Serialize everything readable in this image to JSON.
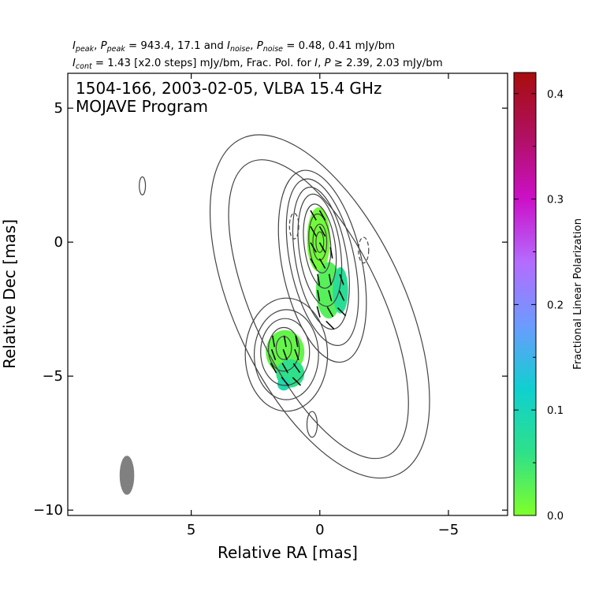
{
  "header": {
    "line1": "I_peak, P_peak = 943.4, 17.1 and I_noise, P_noise = 0.48, 0.41 mJy/bm",
    "line2": "I_cont = 1.43 [x2.0 steps] mJy/bm, Frac. Pol. for I, P ≥ 2.39, 2.03 mJy/bm"
  },
  "chart_data": {
    "type": "contour",
    "title": "1504-166, 2003-02-05, VLBA 15.4 GHz",
    "subtitle": "MOJAVE Program",
    "xlabel": "Relative RA [mas]",
    "ylabel": "Relative Dec [mas]",
    "xlim": [
      9.8,
      -7.3
    ],
    "ylim": [
      -10.2,
      6.3
    ],
    "x_ticks": [
      {
        "value": 5,
        "label": "5"
      },
      {
        "value": 0,
        "label": "0"
      },
      {
        "value": -5,
        "label": "−5"
      }
    ],
    "y_ticks": [
      {
        "value": 5,
        "label": "5"
      },
      {
        "value": 0,
        "label": "0"
      },
      {
        "value": -5,
        "label": "−5"
      },
      {
        "value": -10,
        "label": "−10"
      }
    ],
    "colorbar": {
      "label": "Fractional Linear Polarization",
      "range": [
        0.0,
        0.42
      ],
      "ticks": [
        {
          "value": 0.0,
          "label": "0.0"
        },
        {
          "value": 0.1,
          "label": "0.1"
        },
        {
          "value": 0.2,
          "label": "0.2"
        },
        {
          "value": 0.3,
          "label": "0.3"
        },
        {
          "value": 0.4,
          "label": "0.4"
        }
      ],
      "colors": [
        "#7fff2a",
        "#2ee08a",
        "#0fd0d0",
        "#6b9bff",
        "#b46cff",
        "#cc10c8",
        "#b01060",
        "#a80d0d"
      ]
    },
    "beam": {
      "x": 7.5,
      "y": -8.7,
      "major_mas": 1.5,
      "minor_mas": 0.55,
      "pa_deg": 0
    },
    "core_contours": [
      {
        "level": 1,
        "rx": 3.3,
        "ry": 7.2,
        "dx": 0.0,
        "dy": -2.4,
        "rot": -25
      },
      {
        "level": 2,
        "rx": 2.5,
        "ry": 6.3,
        "dx": 0.05,
        "dy": -2.5,
        "rot": -25
      },
      {
        "level": 3,
        "rx": 1.55,
        "ry": 3.8,
        "dx": -0.1,
        "dy": -0.9,
        "rot": -12
      },
      {
        "level": 4,
        "rx": 1.25,
        "ry": 3.3,
        "dx": -0.1,
        "dy": -0.75,
        "rot": -12
      },
      {
        "level": 5,
        "rx": 1.0,
        "ry": 2.8,
        "dx": -0.05,
        "dy": -0.6,
        "rot": -10
      },
      {
        "level": 6,
        "rx": 0.8,
        "ry": 2.2,
        "dx": 0.0,
        "dy": -0.3,
        "rot": -8
      },
      {
        "level": 7,
        "rx": 0.6,
        "ry": 1.65,
        "dx": 0.0,
        "dy": -0.15,
        "rot": -8
      },
      {
        "level": 8,
        "rx": 0.42,
        "ry": 1.15,
        "dx": 0.0,
        "dy": -0.05,
        "rot": -5
      },
      {
        "level": 9,
        "rx": 0.27,
        "ry": 0.7,
        "dx": 0.0,
        "dy": 0.0,
        "rot": 0
      },
      {
        "level": 10,
        "rx": 0.15,
        "ry": 0.4,
        "dx": 0.0,
        "dy": 0.0,
        "rot": 0
      }
    ],
    "knot_contours": [
      {
        "level": 1,
        "cx": 1.3,
        "cy": -4.2,
        "rx": 1.6,
        "ry": 2.2
      },
      {
        "level": 2,
        "cx": 1.3,
        "cy": -4.2,
        "rx": 1.25,
        "ry": 1.75
      },
      {
        "level": 3,
        "cx": 1.35,
        "cy": -4.1,
        "rx": 0.95,
        "ry": 1.3
      },
      {
        "level": 4,
        "cx": 1.4,
        "cy": -4.0,
        "rx": 0.6,
        "ry": 0.85
      },
      {
        "level": 5,
        "cx": 1.4,
        "cy": -3.95,
        "rx": 0.3,
        "ry": 0.45
      }
    ],
    "isolated_contours": [
      {
        "x": 6.9,
        "y": 2.1,
        "rx": 0.12,
        "ry": 0.35,
        "dashed": false
      },
      {
        "x": 1.0,
        "y": 0.6,
        "rx": 0.18,
        "ry": 0.5,
        "dashed": true
      },
      {
        "x": -1.7,
        "y": -0.3,
        "rx": 0.2,
        "ry": 0.5,
        "dashed": true
      },
      {
        "x": 0.3,
        "y": -6.8,
        "rx": 0.2,
        "ry": 0.5,
        "dashed": false
      }
    ],
    "polarization_regions": [
      {
        "x": 0.05,
        "y": 0.1,
        "rx": 0.45,
        "ry": 1.25,
        "frac": 0.01
      },
      {
        "x": -0.35,
        "y": -1.8,
        "rx": 0.5,
        "ry": 1.1,
        "frac": 0.03
      },
      {
        "x": -0.8,
        "y": -1.8,
        "rx": 0.3,
        "ry": 0.9,
        "frac": 0.07
      },
      {
        "x": 1.35,
        "y": -4.1,
        "rx": 0.75,
        "ry": 0.85,
        "frac": 0.02
      },
      {
        "x": 1.15,
        "y": -4.9,
        "rx": 0.55,
        "ry": 0.55,
        "frac": 0.06
      },
      {
        "x": 1.4,
        "y": -5.3,
        "rx": 0.25,
        "ry": 0.25,
        "frac": 0.09
      }
    ],
    "evpa_vectors": [
      {
        "x": 0.25,
        "y": 1.0,
        "pa": 60
      },
      {
        "x": -0.1,
        "y": 1.0,
        "pa": 60
      },
      {
        "x": 0.25,
        "y": 0.4,
        "pa": 60
      },
      {
        "x": -0.1,
        "y": 0.4,
        "pa": 60
      },
      {
        "x": 0.25,
        "y": -0.2,
        "pa": 60
      },
      {
        "x": -0.1,
        "y": -0.2,
        "pa": 60
      },
      {
        "x": 0.25,
        "y": -0.8,
        "pa": 60
      },
      {
        "x": -0.1,
        "y": -0.8,
        "pa": 60
      },
      {
        "x": -0.45,
        "y": -0.4,
        "pa": 80
      },
      {
        "x": 0.05,
        "y": -1.4,
        "pa": 80
      },
      {
        "x": -0.4,
        "y": -1.4,
        "pa": 80
      },
      {
        "x": -0.85,
        "y": -1.4,
        "pa": 70
      },
      {
        "x": 0.05,
        "y": -2.0,
        "pa": 80
      },
      {
        "x": -0.4,
        "y": -2.0,
        "pa": 75
      },
      {
        "x": -0.85,
        "y": -2.0,
        "pa": 65
      },
      {
        "x": 0.05,
        "y": -2.6,
        "pa": 75
      },
      {
        "x": -0.4,
        "y": -2.6,
        "pa": 60
      },
      {
        "x": -0.85,
        "y": -2.6,
        "pa": 45
      },
      {
        "x": -0.4,
        "y": -3.1,
        "pa": 45
      },
      {
        "x": 1.8,
        "y": -3.7,
        "pa": 80
      },
      {
        "x": 1.35,
        "y": -3.7,
        "pa": 80
      },
      {
        "x": 0.9,
        "y": -3.7,
        "pa": 80
      },
      {
        "x": 1.8,
        "y": -4.2,
        "pa": 70
      },
      {
        "x": 1.35,
        "y": -4.2,
        "pa": 70
      },
      {
        "x": 0.9,
        "y": -4.2,
        "pa": 70
      },
      {
        "x": 1.8,
        "y": -4.7,
        "pa": 60
      },
      {
        "x": 1.35,
        "y": -4.7,
        "pa": 60
      },
      {
        "x": 0.9,
        "y": -4.7,
        "pa": 55
      },
      {
        "x": 1.35,
        "y": -5.2,
        "pa": 50
      },
      {
        "x": 0.9,
        "y": -5.2,
        "pa": 45
      }
    ]
  }
}
